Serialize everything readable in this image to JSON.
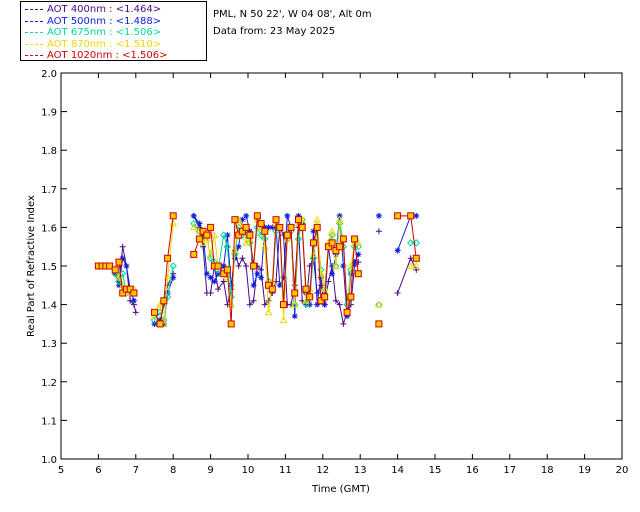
{
  "header": {
    "location": "PML, N 50 22', W 04 08', Alt 0m",
    "date": "Data from: 23 May 2025"
  },
  "legend": [
    {
      "label": "AOT  400nm : <1.464>",
      "color": "#4a0a8a"
    },
    {
      "label": "AOT  500nm : <1.488>",
      "color": "#1020d8"
    },
    {
      "label": "AOT  675nm : <1.506>",
      "color": "#00d8a0"
    },
    {
      "label": "AOT  870nm : <1.510>",
      "color": "#f0d800"
    },
    {
      "label": "AOT 1020nm : <1.506>",
      "color": "#d00000"
    }
  ],
  "chart_data": {
    "type": "line",
    "xlabel": "Time (GMT)",
    "ylabel": "Real Part of Refractive Index",
    "xlim": [
      5,
      20
    ],
    "ylim": [
      1.0,
      2.0
    ],
    "xticks": [
      5,
      6,
      7,
      8,
      9,
      10,
      11,
      12,
      13,
      14,
      15,
      16,
      17,
      18,
      19,
      20
    ],
    "yticks": [
      1.0,
      1.1,
      1.2,
      1.3,
      1.4,
      1.5,
      1.6,
      1.7,
      1.8,
      1.9,
      2.0
    ],
    "series": [
      {
        "name": "AOT  400nm : <1.464>",
        "marker": "plus",
        "color": "#4a0a8a",
        "x": [
          6.0,
          6.1,
          6.2,
          6.3,
          6.45,
          6.55,
          6.65,
          6.75,
          6.85,
          6.95,
          7.0,
          7.5,
          7.65,
          7.75,
          7.85,
          8.0,
          8.55,
          8.7,
          8.8,
          8.9,
          9.0,
          9.1,
          9.2,
          9.35,
          9.45,
          9.55,
          9.65,
          9.75,
          9.85,
          9.95,
          10.05,
          10.15,
          10.25,
          10.35,
          10.45,
          10.55,
          10.65,
          10.75,
          10.85,
          10.95,
          11.05,
          11.15,
          11.25,
          11.35,
          11.45,
          11.55,
          11.65,
          11.75,
          11.85,
          11.95,
          12.05,
          12.15,
          12.25,
          12.35,
          12.45,
          12.55,
          12.65,
          12.75,
          12.85,
          12.95,
          13.5,
          14.0,
          14.35,
          14.5
        ],
        "y": [
          1.5,
          1.5,
          1.5,
          1.5,
          1.48,
          1.46,
          1.55,
          1.5,
          1.41,
          1.4,
          1.38,
          1.35,
          1.35,
          1.4,
          1.45,
          1.48,
          1.63,
          1.6,
          1.55,
          1.43,
          1.43,
          1.5,
          1.44,
          1.46,
          1.4,
          1.44,
          1.54,
          1.5,
          1.52,
          1.5,
          1.4,
          1.41,
          1.5,
          1.49,
          1.4,
          1.41,
          1.43,
          1.46,
          1.6,
          1.58,
          1.4,
          1.4,
          1.45,
          1.6,
          1.41,
          1.4,
          1.5,
          1.52,
          1.43,
          1.45,
          1.4,
          1.46,
          1.5,
          1.41,
          1.4,
          1.35,
          1.38,
          1.4,
          1.5,
          1.51,
          1.59,
          1.43,
          1.52,
          1.49
        ]
      },
      {
        "name": "AOT  500nm : <1.488>",
        "marker": "asterisk",
        "color": "#1020d8",
        "x": [
          6.0,
          6.1,
          6.2,
          6.3,
          6.45,
          6.55,
          6.65,
          6.75,
          6.85,
          6.95,
          7.5,
          7.65,
          7.75,
          7.85,
          8.0,
          8.55,
          8.7,
          8.8,
          8.9,
          9.0,
          9.1,
          9.2,
          9.35,
          9.45,
          9.55,
          9.65,
          9.75,
          9.85,
          9.95,
          10.05,
          10.15,
          10.25,
          10.35,
          10.45,
          10.55,
          10.65,
          10.75,
          10.85,
          10.95,
          11.05,
          11.15,
          11.25,
          11.35,
          11.45,
          11.55,
          11.65,
          11.75,
          11.85,
          11.95,
          12.05,
          12.15,
          12.25,
          12.35,
          12.45,
          12.55,
          12.65,
          12.75,
          12.85,
          12.95,
          13.5,
          14.0,
          14.35,
          14.5
        ],
        "y": [
          1.5,
          1.5,
          1.5,
          1.5,
          1.48,
          1.45,
          1.52,
          1.5,
          1.44,
          1.41,
          1.35,
          1.36,
          1.35,
          1.43,
          1.47,
          1.63,
          1.61,
          1.58,
          1.48,
          1.47,
          1.46,
          1.48,
          1.5,
          1.58,
          1.45,
          1.52,
          1.55,
          1.62,
          1.63,
          1.59,
          1.45,
          1.48,
          1.47,
          1.6,
          1.6,
          1.6,
          1.6,
          1.45,
          1.47,
          1.63,
          1.6,
          1.37,
          1.63,
          1.61,
          1.43,
          1.4,
          1.59,
          1.4,
          1.47,
          1.4,
          1.55,
          1.48,
          1.53,
          1.63,
          1.5,
          1.37,
          1.48,
          1.51,
          1.53,
          1.63,
          1.54,
          1.63,
          1.63
        ]
      },
      {
        "name": "AOT  675nm : <1.506>",
        "marker": "diamond",
        "color": "#00d8a0",
        "x": [
          6.0,
          6.1,
          6.2,
          6.3,
          6.45,
          6.55,
          6.65,
          6.75,
          6.85,
          6.95,
          7.5,
          7.65,
          7.75,
          7.85,
          8.0,
          8.55,
          8.7,
          8.8,
          8.9,
          9.0,
          9.1,
          9.2,
          9.35,
          9.45,
          9.55,
          9.65,
          9.75,
          9.85,
          9.95,
          10.05,
          10.15,
          10.25,
          10.35,
          10.45,
          10.55,
          10.65,
          10.75,
          10.85,
          10.95,
          11.05,
          11.15,
          11.25,
          11.35,
          11.45,
          11.55,
          11.65,
          11.75,
          11.85,
          11.95,
          12.05,
          12.15,
          12.25,
          12.35,
          12.45,
          12.55,
          12.65,
          12.75,
          12.85,
          12.95,
          13.5,
          14.35,
          14.5
        ],
        "y": [
          1.5,
          1.5,
          1.5,
          1.5,
          1.48,
          1.46,
          1.48,
          1.43,
          1.44,
          1.43,
          1.36,
          1.38,
          1.36,
          1.42,
          1.5,
          1.61,
          1.59,
          1.57,
          1.58,
          1.52,
          1.51,
          1.49,
          1.58,
          1.55,
          1.42,
          1.53,
          1.6,
          1.58,
          1.58,
          1.56,
          1.5,
          1.6,
          1.58,
          1.57,
          1.46,
          1.44,
          1.59,
          1.6,
          1.4,
          1.57,
          1.59,
          1.4,
          1.57,
          1.62,
          1.4,
          1.42,
          1.52,
          1.6,
          1.49,
          1.44,
          1.55,
          1.58,
          1.5,
          1.61,
          1.55,
          1.4,
          1.49,
          1.55,
          1.55,
          1.4,
          1.56,
          1.56
        ]
      },
      {
        "name": "AOT  870nm : <1.510>",
        "marker": "triangle",
        "color": "#f0d800",
        "x": [
          6.0,
          6.1,
          6.2,
          6.3,
          6.45,
          6.55,
          6.65,
          6.75,
          6.85,
          6.95,
          7.5,
          7.65,
          7.75,
          7.85,
          8.0,
          8.55,
          8.7,
          8.8,
          8.9,
          9.0,
          9.1,
          9.2,
          9.35,
          9.45,
          9.55,
          9.65,
          9.75,
          9.85,
          9.95,
          10.05,
          10.15,
          10.25,
          10.35,
          10.45,
          10.55,
          10.65,
          10.75,
          10.85,
          10.95,
          11.05,
          11.15,
          11.25,
          11.35,
          11.45,
          11.55,
          11.65,
          11.75,
          11.85,
          11.95,
          12.05,
          12.15,
          12.25,
          12.35,
          12.45,
          12.55,
          12.65,
          12.75,
          12.85,
          12.95,
          13.5,
          14.35,
          14.5
        ],
        "y": [
          1.5,
          1.5,
          1.5,
          1.5,
          1.49,
          1.47,
          1.45,
          1.43,
          1.44,
          1.44,
          1.37,
          1.4,
          1.35,
          1.47,
          1.61,
          1.6,
          1.59,
          1.56,
          1.57,
          1.53,
          1.58,
          1.5,
          1.48,
          1.47,
          1.4,
          1.54,
          1.62,
          1.6,
          1.56,
          1.57,
          1.5,
          1.62,
          1.6,
          1.55,
          1.38,
          1.46,
          1.61,
          1.6,
          1.36,
          1.57,
          1.6,
          1.4,
          1.61,
          1.62,
          1.41,
          1.44,
          1.53,
          1.62,
          1.48,
          1.44,
          1.56,
          1.59,
          1.5,
          1.62,
          1.57,
          1.38,
          1.5,
          1.56,
          1.56,
          1.4,
          1.5,
          1.5
        ]
      },
      {
        "name": "AOT 1020nm : <1.506>",
        "marker": "square",
        "color": "#d00000",
        "x": [
          6.0,
          6.1,
          6.2,
          6.3,
          6.45,
          6.55,
          6.65,
          6.75,
          6.85,
          6.95,
          7.5,
          7.65,
          7.75,
          7.85,
          8.0,
          8.55,
          8.7,
          8.8,
          8.9,
          9.0,
          9.1,
          9.2,
          9.35,
          9.45,
          9.55,
          9.65,
          9.75,
          9.85,
          9.95,
          10.05,
          10.15,
          10.25,
          10.35,
          10.45,
          10.55,
          10.65,
          10.75,
          10.85,
          10.95,
          11.05,
          11.15,
          11.25,
          11.35,
          11.45,
          11.55,
          11.65,
          11.75,
          11.85,
          11.95,
          12.05,
          12.15,
          12.25,
          12.35,
          12.45,
          12.55,
          12.65,
          12.75,
          12.85,
          12.95,
          13.5,
          14.0,
          14.35,
          14.5
        ],
        "y": [
          1.5,
          1.5,
          1.5,
          1.5,
          1.49,
          1.51,
          1.43,
          1.44,
          1.44,
          1.43,
          1.38,
          1.35,
          1.41,
          1.52,
          1.63,
          1.53,
          1.57,
          1.59,
          1.58,
          1.6,
          1.5,
          1.5,
          1.48,
          1.49,
          1.35,
          1.62,
          1.58,
          1.59,
          1.6,
          1.58,
          1.5,
          1.63,
          1.61,
          1.59,
          1.45,
          1.44,
          1.62,
          1.6,
          1.4,
          1.58,
          1.6,
          1.43,
          1.62,
          1.6,
          1.44,
          1.42,
          1.56,
          1.6,
          1.41,
          1.42,
          1.55,
          1.56,
          1.54,
          1.55,
          1.57,
          1.38,
          1.42,
          1.57,
          1.48,
          1.35,
          1.63,
          1.63,
          1.52
        ]
      }
    ]
  }
}
